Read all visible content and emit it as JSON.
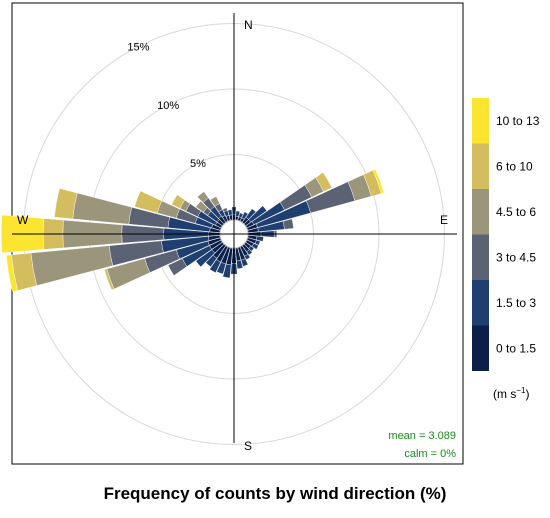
{
  "chart_data": {
    "type": "windrose",
    "title": "Frequency of counts by wind direction (%)",
    "compass_labels": {
      "north": "N",
      "east": "E",
      "south": "S",
      "west": "W"
    },
    "ring_labels": [
      "5%",
      "10%",
      "15%"
    ],
    "ring_values": [
      5,
      10,
      15
    ],
    "r_max": 17.5,
    "stats": {
      "mean": "mean = 3.089",
      "calm": "calm = 0%"
    },
    "units_label": {
      "base": "(m s",
      "exponent": "−1",
      "close": ")"
    },
    "bins": [
      {
        "label": "0 to 1.5",
        "color": "#0b1f4a"
      },
      {
        "label": "1.5 to 3",
        "color": "#1e3f6f"
      },
      {
        "label": "3 to 4.5",
        "color": "#5b6274"
      },
      {
        "label": "4.5 to 6",
        "color": "#9b957b"
      },
      {
        "label": "6 to 10",
        "color": "#d4bd5e"
      },
      {
        "label": "10 to 13",
        "color": "#fbe531"
      }
    ],
    "direction_step_deg": 10,
    "directions": [
      {
        "dir": 0,
        "cum": [
          0.4,
          1.0
        ]
      },
      {
        "dir": 10,
        "cum": [
          0.3,
          0.7
        ]
      },
      {
        "dir": 20,
        "cum": [
          0.3,
          0.6
        ]
      },
      {
        "dir": 30,
        "cum": [
          0.3,
          0.8
        ]
      },
      {
        "dir": 40,
        "cum": [
          0.5,
          1.3
        ]
      },
      {
        "dir": 50,
        "cum": [
          0.5,
          2.0
        ]
      },
      {
        "dir": 60,
        "cum": [
          0.6,
          3.2,
          5.5,
          6.5,
          7.2
        ]
      },
      {
        "dir": 70,
        "cum": [
          0.8,
          5.0,
          8.5,
          9.8,
          10.6,
          10.8
        ]
      },
      {
        "dir": 80,
        "cum": [
          0.8,
          2.8,
          3.5
        ]
      },
      {
        "dir": 90,
        "cum": [
          1.0,
          2.0,
          2.2
        ]
      },
      {
        "dir": 100,
        "cum": [
          0.7,
          1.2
        ]
      },
      {
        "dir": 110,
        "cum": [
          0.7,
          1.0
        ]
      },
      {
        "dir": 120,
        "cum": [
          0.6,
          1.0
        ]
      },
      {
        "dir": 130,
        "cum": [
          0.5,
          0.8
        ]
      },
      {
        "dir": 140,
        "cum": [
          0.6,
          0.9
        ]
      },
      {
        "dir": 150,
        "cum": [
          0.8,
          1.1
        ]
      },
      {
        "dir": 160,
        "cum": [
          1.0,
          1.5
        ]
      },
      {
        "dir": 170,
        "cum": [
          1.0,
          1.6
        ]
      },
      {
        "dir": 180,
        "cum": [
          1.2,
          2.0
        ]
      },
      {
        "dir": 190,
        "cum": [
          1.3,
          2.3
        ]
      },
      {
        "dir": 200,
        "cum": [
          1.3,
          2.1
        ]
      },
      {
        "dir": 210,
        "cum": [
          1.3,
          2.2
        ]
      },
      {
        "dir": 220,
        "cum": [
          1.2,
          2.0
        ]
      },
      {
        "dir": 230,
        "cum": [
          1.0,
          2.5
        ]
      },
      {
        "dir": 240,
        "cum": [
          1.0,
          3.3,
          4.5
        ]
      },
      {
        "dir": 250,
        "cum": [
          1.0,
          3.5,
          6.0,
          9.0,
          9.2
        ]
      },
      {
        "dir": 260,
        "cum": [
          0.9,
          4.5,
          8.5,
          14.5,
          16.0,
          16.4
        ]
      },
      {
        "dir": 270,
        "cum": [
          0.9,
          4.3,
          7.5,
          12.0,
          13.5,
          16.7
        ]
      },
      {
        "dir": 280,
        "cum": [
          0.8,
          4.0,
          7.0,
          11.3,
          12.7
        ]
      },
      {
        "dir": 290,
        "cum": [
          0.7,
          2.0,
          3.5,
          5.0,
          6.8
        ]
      },
      {
        "dir": 300,
        "cum": [
          0.5,
          2.0,
          3.0,
          3.5,
          4.2
        ]
      },
      {
        "dir": 310,
        "cum": [
          0.5,
          1.4,
          1.8,
          2.5
        ]
      },
      {
        "dir": 320,
        "cum": [
          0.6,
          1.5,
          2.3,
          2.9
        ]
      },
      {
        "dir": 330,
        "cum": [
          0.5,
          1.0,
          1.5,
          2.1
        ]
      },
      {
        "dir": 340,
        "cum": [
          0.4,
          0.8,
          1.0
        ]
      },
      {
        "dir": 350,
        "cum": [
          0.4,
          0.8
        ]
      }
    ]
  }
}
